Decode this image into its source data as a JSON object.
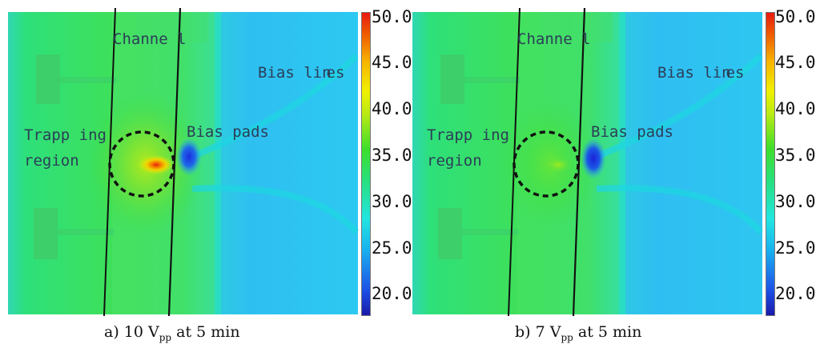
{
  "colorbar": {
    "ticks": [
      "50.0",
      "45.0",
      "40.0",
      "35.0",
      "30.0",
      "25.0",
      "20.0"
    ]
  },
  "panels": [
    {
      "caption_prefix": "a) 10 V",
      "caption_sub": "pp",
      "caption_suffix": " at 5 min",
      "labels": {
        "channel": "Channe l",
        "bias_lines": "Bias lin",
        "bias_lines_tail": "es",
        "bias_pads": "Bias pads",
        "trapping_line1": "Trapp ing",
        "trapping_line2": "region"
      },
      "hotspot_temperature_relative": 1.0
    },
    {
      "caption_prefix": "b) 7 V",
      "caption_sub": "pp",
      "caption_suffix": " at 5 min",
      "labels": {
        "channel": "Channe l",
        "bias_lines": "Bias lin",
        "bias_lines_tail": "es",
        "bias_pads": "Bias pads",
        "trapping_line1": "Trapp ing",
        "trapping_line2": "region"
      },
      "hotspot_temperature_relative": 0.3
    }
  ]
}
